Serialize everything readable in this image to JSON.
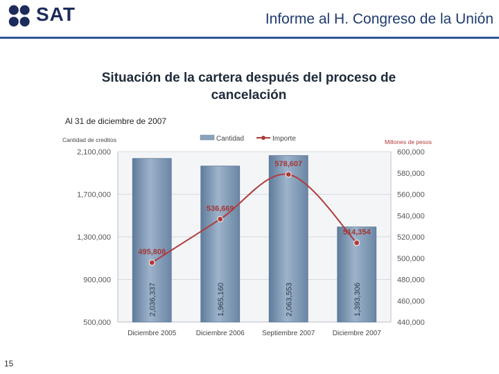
{
  "header": {
    "logo_text": "SAT",
    "title": "Informe al H. Congreso de la Unión"
  },
  "slide": {
    "title_line1": "Situación de la cartera después del proceso de",
    "title_line2": "cancelación",
    "subtitle": "Al 31 de diciembre de 2007",
    "page_number": "15"
  },
  "colors": {
    "accent": "#2f5597",
    "bar": "#7c97b4",
    "line": "#b23a3a"
  },
  "chart_data": {
    "type": "bar",
    "categories": [
      "Diciembre 2005",
      "Diciembre 2006",
      "Septiembre 2007",
      "Diciembre 2007"
    ],
    "series": [
      {
        "name": "Cantidad",
        "type": "bar",
        "axis": "left",
        "values": [
          2036337,
          1965160,
          2063553,
          1393306
        ],
        "labels": [
          "2,036,337",
          "1,965,160",
          "2,063,553",
          "1,393,306"
        ]
      },
      {
        "name": "Importe",
        "type": "line",
        "axis": "right",
        "values": [
          495808,
          536669,
          578607,
          514354
        ],
        "labels": [
          "495,808",
          "536,669",
          "578,607",
          "514,354"
        ]
      }
    ],
    "ylabel_left": "Cantidad de creditos",
    "ylabel_right": "Millones de pesos",
    "ylim_left": [
      500000,
      2100000
    ],
    "ylim_right": [
      440000,
      600000
    ],
    "yticks_left": [
      "500,000",
      "900,000",
      "1,300,000",
      "1,700,000",
      "2,100,000"
    ],
    "yticks_right": [
      "440,000",
      "460,000",
      "480,000",
      "500,000",
      "520,000",
      "540,000",
      "560,000",
      "580,000",
      "600,000"
    ],
    "legend_position": "top"
  }
}
